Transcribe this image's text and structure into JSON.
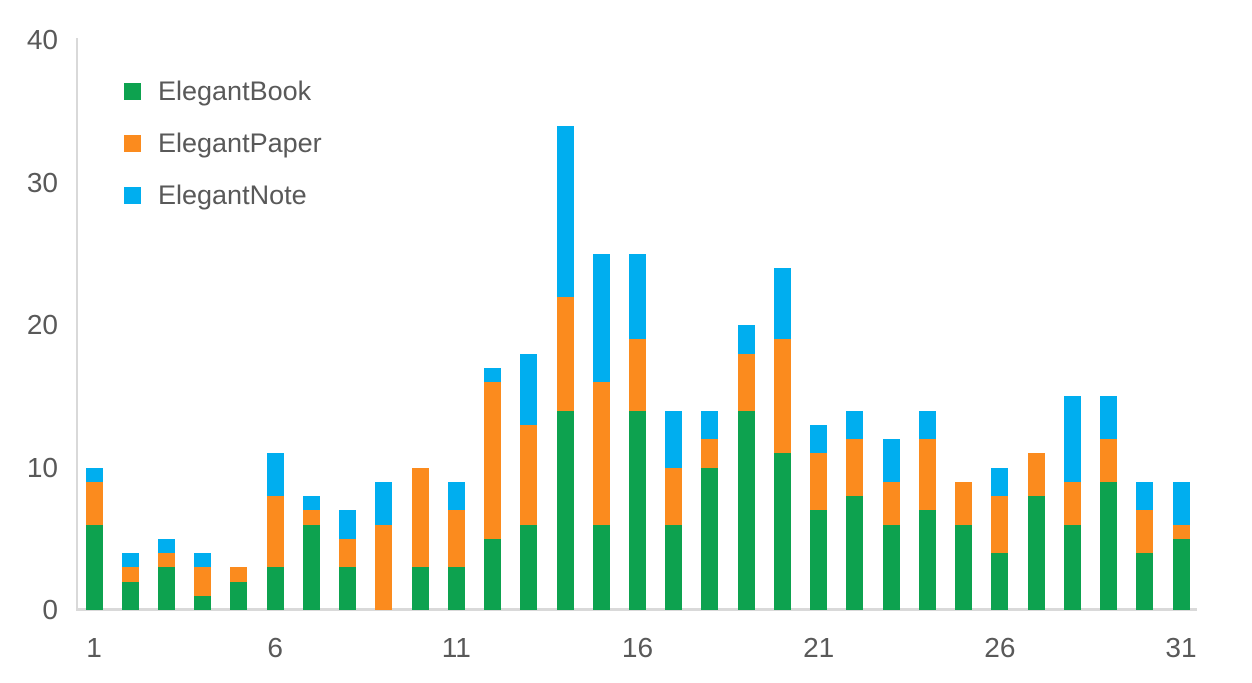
{
  "chart_data": {
    "type": "bar",
    "stacked": true,
    "title": "",
    "xlabel": "",
    "ylabel": "",
    "categories": [
      1,
      2,
      3,
      4,
      5,
      6,
      7,
      8,
      9,
      10,
      11,
      12,
      13,
      14,
      15,
      16,
      17,
      18,
      19,
      20,
      21,
      22,
      23,
      24,
      25,
      26,
      27,
      28,
      29,
      30,
      31
    ],
    "series": [
      {
        "name": "ElegantBook",
        "color": "#0DA24F",
        "values": [
          6,
          2,
          3,
          1,
          2,
          3,
          6,
          3,
          0,
          3,
          3,
          5,
          6,
          14,
          6,
          14,
          6,
          10,
          14,
          11,
          7,
          8,
          6,
          7,
          6,
          4,
          8,
          6,
          9,
          4,
          5
        ]
      },
      {
        "name": "ElegantPaper",
        "color": "#FB8B1E",
        "values": [
          3,
          1,
          1,
          2,
          1,
          5,
          1,
          2,
          6,
          7,
          4,
          11,
          7,
          8,
          10,
          5,
          4,
          2,
          4,
          8,
          4,
          4,
          3,
          5,
          3,
          4,
          3,
          3,
          3,
          3,
          1
        ]
      },
      {
        "name": "ElegantNote",
        "color": "#00AEEF",
        "values": [
          1,
          1,
          1,
          1,
          0,
          3,
          1,
          2,
          3,
          0,
          2,
          1,
          5,
          12,
          9,
          6,
          4,
          2,
          2,
          5,
          2,
          2,
          3,
          2,
          0,
          2,
          0,
          6,
          3,
          2,
          3
        ]
      }
    ],
    "totals": [
      10,
      4,
      5,
      4,
      3,
      11,
      8,
      7,
      9,
      10,
      9,
      17,
      18,
      34,
      25,
      25,
      14,
      14,
      20,
      24,
      13,
      14,
      12,
      14,
      9,
      10,
      11,
      15,
      15,
      9,
      9
    ],
    "ylim": [
      0,
      40
    ],
    "y_ticks": [
      0,
      10,
      20,
      30,
      40
    ],
    "x_ticks": [
      1,
      6,
      11,
      16,
      21,
      26,
      31
    ],
    "grid": false,
    "legend_position": "top-left"
  },
  "colors": {
    "background": "#FFFFFF",
    "axis_line": "#D9D9D9",
    "tick_text": "#595959",
    "legend_text": "#595959"
  }
}
